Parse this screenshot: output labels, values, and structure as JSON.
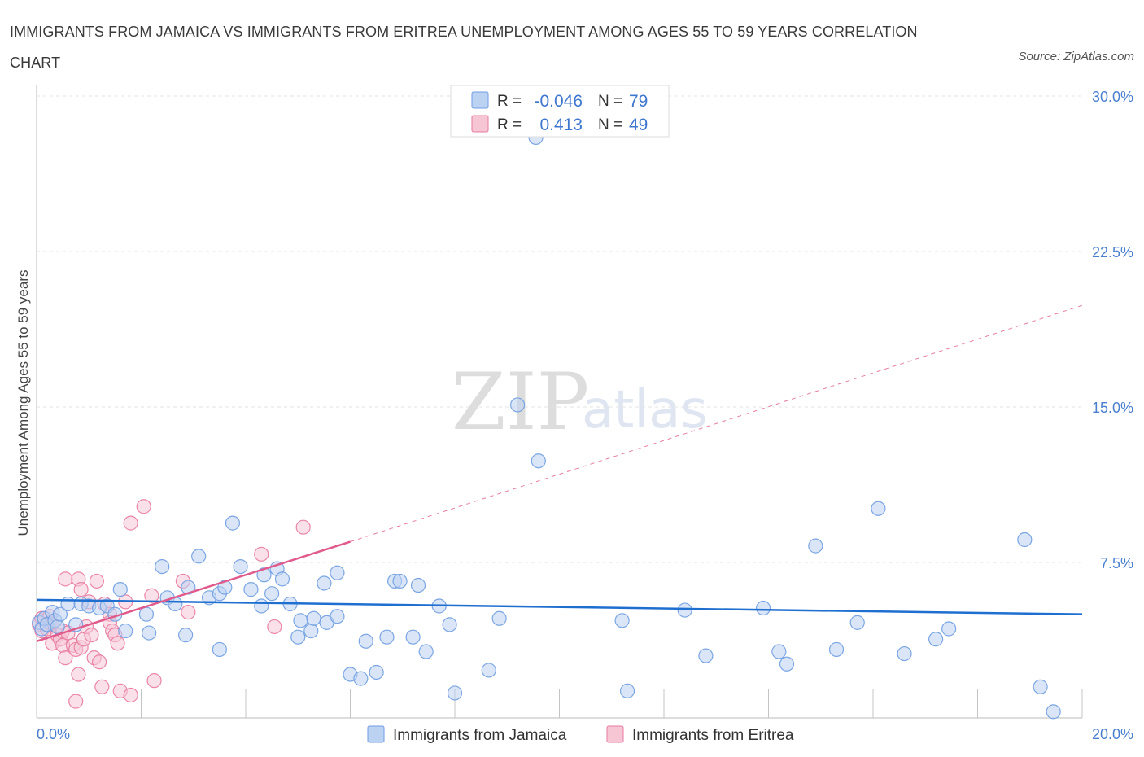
{
  "title": "IMMIGRANTS FROM JAMAICA VS IMMIGRANTS FROM ERITREA UNEMPLOYMENT AMONG AGES 55 TO 59 YEARS CORRELATION CHART",
  "source": "Source: ZipAtlas.com",
  "watermark": {
    "zip": "ZIP",
    "atlas": "atlas"
  },
  "colors": {
    "jamaica": "#6f9de0",
    "jamaica_fill": "#bcd2f3",
    "eritrea": "#e87aa0",
    "eritrea_fill": "#f6c6d5",
    "trend_jamaica": "#1f6fd0",
    "trend_eritrea": "#e05a8c"
  },
  "legend": {
    "rows": [
      {
        "r_label": "R =",
        "r_value": "-0.046",
        "n_label": "N =",
        "n_value": "79"
      },
      {
        "r_label": "R =",
        "r_value": "0.413",
        "n_label": "N =",
        "n_value": "49"
      }
    ]
  },
  "chart_data": {
    "type": "scatter",
    "title": "IMMIGRANTS FROM JAMAICA VS IMMIGRANTS FROM ERITREA UNEMPLOYMENT AMONG AGES 55 TO 59 YEARS CORRELATION CHART",
    "xlabel": "",
    "ylabel": "Unemployment Among Ages 55 to 59 years",
    "xlim": [
      0,
      20
    ],
    "ylim": [
      0,
      30
    ],
    "x_tick_labels": [
      "0.0%",
      "20.0%"
    ],
    "y_ticks": [
      7.5,
      15.0,
      22.5,
      30.0
    ],
    "y_tick_labels": [
      "7.5%",
      "15.0%",
      "22.5%",
      "30.0%"
    ],
    "grid": true,
    "series": [
      {
        "name": "Immigrants from Jamaica",
        "r": -0.046,
        "n": 79,
        "trend": {
          "x": [
            0,
            20
          ],
          "y": [
            5.7,
            5.0
          ],
          "dashed_extension": false
        },
        "points": [
          [
            0.05,
            4.6
          ],
          [
            0.1,
            4.3
          ],
          [
            0.15,
            4.8
          ],
          [
            0.2,
            4.5
          ],
          [
            0.3,
            5.1
          ],
          [
            0.35,
            4.7
          ],
          [
            0.4,
            4.4
          ],
          [
            0.45,
            5.0
          ],
          [
            0.6,
            5.5
          ],
          [
            0.75,
            4.5
          ],
          [
            0.85,
            5.5
          ],
          [
            1.0,
            5.4
          ],
          [
            1.2,
            5.3
          ],
          [
            1.35,
            5.4
          ],
          [
            1.5,
            5.0
          ],
          [
            1.6,
            6.2
          ],
          [
            1.7,
            4.2
          ],
          [
            2.1,
            5.0
          ],
          [
            2.15,
            4.1
          ],
          [
            2.4,
            7.3
          ],
          [
            2.5,
            5.8
          ],
          [
            2.65,
            5.5
          ],
          [
            2.85,
            4.0
          ],
          [
            2.9,
            6.3
          ],
          [
            3.1,
            7.8
          ],
          [
            3.3,
            5.8
          ],
          [
            3.5,
            6.0
          ],
          [
            3.5,
            3.3
          ],
          [
            3.6,
            6.3
          ],
          [
            3.75,
            9.4
          ],
          [
            3.9,
            7.3
          ],
          [
            4.1,
            6.2
          ],
          [
            4.3,
            5.4
          ],
          [
            4.35,
            6.9
          ],
          [
            4.5,
            6.0
          ],
          [
            4.6,
            7.2
          ],
          [
            4.7,
            6.7
          ],
          [
            4.85,
            5.5
          ],
          [
            5.0,
            3.9
          ],
          [
            5.05,
            4.7
          ],
          [
            5.25,
            4.2
          ],
          [
            5.3,
            4.8
          ],
          [
            5.5,
            6.5
          ],
          [
            5.55,
            4.6
          ],
          [
            5.75,
            7.0
          ],
          [
            5.75,
            4.9
          ],
          [
            6.0,
            2.1
          ],
          [
            6.2,
            1.9
          ],
          [
            6.3,
            3.7
          ],
          [
            6.5,
            2.2
          ],
          [
            6.7,
            3.9
          ],
          [
            6.85,
            6.6
          ],
          [
            6.95,
            6.6
          ],
          [
            7.2,
            3.9
          ],
          [
            7.3,
            6.4
          ],
          [
            7.45,
            3.2
          ],
          [
            7.7,
            5.4
          ],
          [
            7.9,
            4.5
          ],
          [
            8.0,
            1.2
          ],
          [
            8.65,
            2.3
          ],
          [
            8.85,
            4.8
          ],
          [
            9.2,
            15.1
          ],
          [
            9.55,
            28.0
          ],
          [
            9.6,
            12.4
          ],
          [
            11.2,
            4.7
          ],
          [
            11.3,
            1.3
          ],
          [
            12.4,
            5.2
          ],
          [
            12.8,
            3.0
          ],
          [
            13.9,
            5.3
          ],
          [
            14.2,
            3.2
          ],
          [
            14.35,
            2.6
          ],
          [
            14.9,
            8.3
          ],
          [
            15.3,
            3.3
          ],
          [
            15.7,
            4.6
          ],
          [
            16.1,
            10.1
          ],
          [
            16.6,
            3.1
          ],
          [
            17.2,
            3.8
          ],
          [
            17.45,
            4.3
          ],
          [
            18.9,
            8.6
          ],
          [
            19.2,
            1.5
          ],
          [
            19.45,
            0.3
          ]
        ]
      },
      {
        "name": "Immigrants from Eritrea",
        "r": 0.413,
        "n": 49,
        "trend": {
          "x": [
            0,
            6.0
          ],
          "y": [
            3.7,
            8.5
          ],
          "extension": {
            "x": [
              6.0,
              20
            ],
            "y": [
              8.5,
              19.9
            ]
          },
          "dashed_extension": true
        },
        "points": [
          [
            0.05,
            4.5
          ],
          [
            0.1,
            4.8
          ],
          [
            0.1,
            4.2
          ],
          [
            0.15,
            4.7
          ],
          [
            0.2,
            4.3
          ],
          [
            0.25,
            4.9
          ],
          [
            0.25,
            4.6
          ],
          [
            0.3,
            4.5
          ],
          [
            0.3,
            3.6
          ],
          [
            0.4,
            4.0
          ],
          [
            0.45,
            3.8
          ],
          [
            0.5,
            4.2
          ],
          [
            0.5,
            3.5
          ],
          [
            0.55,
            2.9
          ],
          [
            0.55,
            6.7
          ],
          [
            0.6,
            4.1
          ],
          [
            0.7,
            3.5
          ],
          [
            0.75,
            3.3
          ],
          [
            0.75,
            0.8
          ],
          [
            0.8,
            6.7
          ],
          [
            0.8,
            2.1
          ],
          [
            0.85,
            6.2
          ],
          [
            0.85,
            3.4
          ],
          [
            0.9,
            3.8
          ],
          [
            0.95,
            4.4
          ],
          [
            1.0,
            5.6
          ],
          [
            1.05,
            4.0
          ],
          [
            1.1,
            2.9
          ],
          [
            1.15,
            6.6
          ],
          [
            1.2,
            2.7
          ],
          [
            1.25,
            1.5
          ],
          [
            1.3,
            5.5
          ],
          [
            1.4,
            5.0
          ],
          [
            1.4,
            4.6
          ],
          [
            1.45,
            4.2
          ],
          [
            1.5,
            4.0
          ],
          [
            1.55,
            3.6
          ],
          [
            1.6,
            1.3
          ],
          [
            1.7,
            5.6
          ],
          [
            1.8,
            9.4
          ],
          [
            1.8,
            1.1
          ],
          [
            2.05,
            10.2
          ],
          [
            2.2,
            5.9
          ],
          [
            2.25,
            1.8
          ],
          [
            2.8,
            6.6
          ],
          [
            2.9,
            5.1
          ],
          [
            4.3,
            7.9
          ],
          [
            5.1,
            9.2
          ],
          [
            4.55,
            4.4
          ]
        ]
      }
    ]
  },
  "bottom_legend": [
    "Immigrants from Jamaica",
    "Immigrants from Eritrea"
  ]
}
